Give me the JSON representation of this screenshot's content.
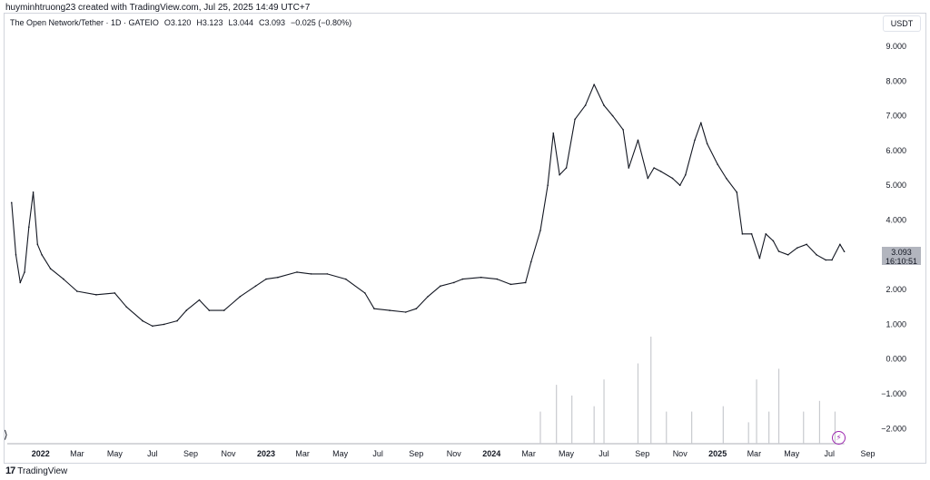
{
  "caption": "huyminhtruong23 created with TradingView.com, Jul 25, 2025 14:49 UTC+7",
  "legend": {
    "symbol": "The Open Network/Tether · 1D · GATEIO",
    "open": "O3.120",
    "high": "H3.123",
    "low": "L3.044",
    "close": "C3.093",
    "change": "−0.025 (−0.80%)"
  },
  "currency": "USDT",
  "price_tag": {
    "price": "3.093",
    "countdown": "16:10:51"
  },
  "footer": {
    "brand": "TradingView",
    "logo": "17"
  },
  "colors": {
    "line": "#131722",
    "volume": "#c8cacf",
    "grid": "#f0f3fa",
    "bolt": "#9c27b0"
  },
  "icons": {
    "side": "arrow-icon",
    "bolt": "lightning-icon"
  },
  "chart_data": {
    "type": "line",
    "series": [
      {
        "values_by_date": [
          [
            "2021-11-15",
            4.5
          ],
          [
            "2021-11-22",
            3.0
          ],
          [
            "2021-11-29",
            2.2
          ],
          [
            "2021-12-06",
            2.5
          ],
          [
            "2021-12-13",
            3.8
          ],
          [
            "2021-12-20",
            4.8
          ],
          [
            "2021-12-27",
            3.3
          ],
          [
            "2022-01-03",
            3.0
          ],
          [
            "2022-01-17",
            2.6
          ],
          [
            "2022-02-07",
            2.3
          ],
          [
            "2022-03-01",
            1.95
          ],
          [
            "2022-04-01",
            1.85
          ],
          [
            "2022-05-01",
            1.9
          ],
          [
            "2022-05-20",
            1.5
          ],
          [
            "2022-06-15",
            1.1
          ],
          [
            "2022-07-01",
            0.95
          ],
          [
            "2022-07-20",
            1.0
          ],
          [
            "2022-08-10",
            1.1
          ],
          [
            "2022-08-25",
            1.4
          ],
          [
            "2022-09-15",
            1.7
          ],
          [
            "2022-10-01",
            1.4
          ],
          [
            "2022-10-25",
            1.4
          ],
          [
            "2022-11-20",
            1.8
          ],
          [
            "2022-12-15",
            2.1
          ],
          [
            "2023-01-01",
            2.3
          ],
          [
            "2023-01-20",
            2.35
          ],
          [
            "2023-02-20",
            2.5
          ],
          [
            "2023-03-15",
            2.45
          ],
          [
            "2023-04-10",
            2.45
          ],
          [
            "2023-05-10",
            2.3
          ],
          [
            "2023-06-10",
            1.9
          ],
          [
            "2023-06-25",
            1.45
          ],
          [
            "2023-07-20",
            1.4
          ],
          [
            "2023-08-15",
            1.35
          ],
          [
            "2023-09-01",
            1.45
          ],
          [
            "2023-09-20",
            1.8
          ],
          [
            "2023-10-10",
            2.1
          ],
          [
            "2023-11-01",
            2.2
          ],
          [
            "2023-11-15",
            2.3
          ],
          [
            "2023-12-15",
            2.35
          ],
          [
            "2024-01-10",
            2.3
          ],
          [
            "2024-02-01",
            2.15
          ],
          [
            "2024-02-25",
            2.2
          ],
          [
            "2024-03-05",
            2.8
          ],
          [
            "2024-03-20",
            3.7
          ],
          [
            "2024-04-01",
            5.0
          ],
          [
            "2024-04-10",
            6.5
          ],
          [
            "2024-04-20",
            5.3
          ],
          [
            "2024-05-01",
            5.5
          ],
          [
            "2024-05-15",
            6.9
          ],
          [
            "2024-06-01",
            7.3
          ],
          [
            "2024-06-15",
            7.9
          ],
          [
            "2024-07-01",
            7.3
          ],
          [
            "2024-07-15",
            7.0
          ],
          [
            "2024-08-01",
            6.6
          ],
          [
            "2024-08-10",
            5.5
          ],
          [
            "2024-08-25",
            6.3
          ],
          [
            "2024-09-10",
            5.2
          ],
          [
            "2024-09-20",
            5.5
          ],
          [
            "2024-10-01",
            5.4
          ],
          [
            "2024-10-20",
            5.2
          ],
          [
            "2024-11-01",
            5.0
          ],
          [
            "2024-11-10",
            5.3
          ],
          [
            "2024-11-25",
            6.3
          ],
          [
            "2024-12-05",
            6.8
          ],
          [
            "2024-12-15",
            6.2
          ],
          [
            "2025-01-01",
            5.6
          ],
          [
            "2025-01-15",
            5.2
          ],
          [
            "2025-02-01",
            4.8
          ],
          [
            "2025-02-10",
            3.6
          ],
          [
            "2025-02-25",
            3.6
          ],
          [
            "2025-03-10",
            2.9
          ],
          [
            "2025-03-20",
            3.6
          ],
          [
            "2025-04-01",
            3.4
          ],
          [
            "2025-04-10",
            3.1
          ],
          [
            "2025-04-25",
            3.0
          ],
          [
            "2025-05-10",
            3.2
          ],
          [
            "2025-05-25",
            3.3
          ],
          [
            "2025-06-10",
            3.0
          ],
          [
            "2025-06-25",
            2.85
          ],
          [
            "2025-07-05",
            2.85
          ],
          [
            "2025-07-18",
            3.3
          ],
          [
            "2025-07-25",
            3.093
          ]
        ]
      }
    ],
    "volume_spikes": [
      [
        "2024-03-20",
        0.3
      ],
      [
        "2024-04-15",
        0.55
      ],
      [
        "2024-05-10",
        0.45
      ],
      [
        "2024-06-15",
        0.35
      ],
      [
        "2024-07-01",
        0.6
      ],
      [
        "2024-08-25",
        0.75
      ],
      [
        "2024-09-15",
        1.0
      ],
      [
        "2024-10-10",
        0.3
      ],
      [
        "2024-11-20",
        0.3
      ],
      [
        "2025-01-10",
        0.35
      ],
      [
        "2025-02-20",
        0.2
      ],
      [
        "2025-03-05",
        0.6
      ],
      [
        "2025-03-25",
        0.3
      ],
      [
        "2025-04-10",
        0.7
      ],
      [
        "2025-05-20",
        0.3
      ],
      [
        "2025-06-15",
        0.4
      ],
      [
        "2025-07-10",
        0.3
      ]
    ],
    "xlim": [
      "2021-11-08",
      "2025-09-15"
    ],
    "ylim": [
      -2.5,
      9.5
    ],
    "yticks": [
      "9.000",
      "8.000",
      "7.000",
      "6.000",
      "5.000",
      "4.000",
      "3.000",
      "2.000",
      "1.000",
      "0.000",
      "−1.000",
      "−2.000"
    ],
    "ytick_values": [
      9,
      8,
      7,
      6,
      5,
      4,
      3,
      2,
      1,
      0,
      -1,
      -2
    ],
    "xticks": [
      {
        "label": "2022",
        "date": "2022-01-01",
        "year": true
      },
      {
        "label": "Mar",
        "date": "2022-03-01",
        "year": false
      },
      {
        "label": "May",
        "date": "2022-05-01",
        "year": false
      },
      {
        "label": "Jul",
        "date": "2022-07-01",
        "year": false
      },
      {
        "label": "Sep",
        "date": "2022-09-01",
        "year": false
      },
      {
        "label": "Nov",
        "date": "2022-11-01",
        "year": false
      },
      {
        "label": "2023",
        "date": "2023-01-01",
        "year": true
      },
      {
        "label": "Mar",
        "date": "2023-03-01",
        "year": false
      },
      {
        "label": "May",
        "date": "2023-05-01",
        "year": false
      },
      {
        "label": "Jul",
        "date": "2023-07-01",
        "year": false
      },
      {
        "label": "Sep",
        "date": "2023-09-01",
        "year": false
      },
      {
        "label": "Nov",
        "date": "2023-11-01",
        "year": false
      },
      {
        "label": "2024",
        "date": "2024-01-01",
        "year": true
      },
      {
        "label": "Mar",
        "date": "2024-03-01",
        "year": false
      },
      {
        "label": "May",
        "date": "2024-05-01",
        "year": false
      },
      {
        "label": "Jul",
        "date": "2024-07-01",
        "year": false
      },
      {
        "label": "Sep",
        "date": "2024-09-01",
        "year": false
      },
      {
        "label": "Nov",
        "date": "2024-11-01",
        "year": false
      },
      {
        "label": "2025",
        "date": "2025-01-01",
        "year": true
      },
      {
        "label": "Mar",
        "date": "2025-03-01",
        "year": false
      },
      {
        "label": "May",
        "date": "2025-05-01",
        "year": false
      },
      {
        "label": "Jul",
        "date": "2025-07-01",
        "year": false
      },
      {
        "label": "Sep",
        "date": "2025-09-01",
        "year": false
      }
    ],
    "grid": false,
    "legend": "top-left"
  }
}
